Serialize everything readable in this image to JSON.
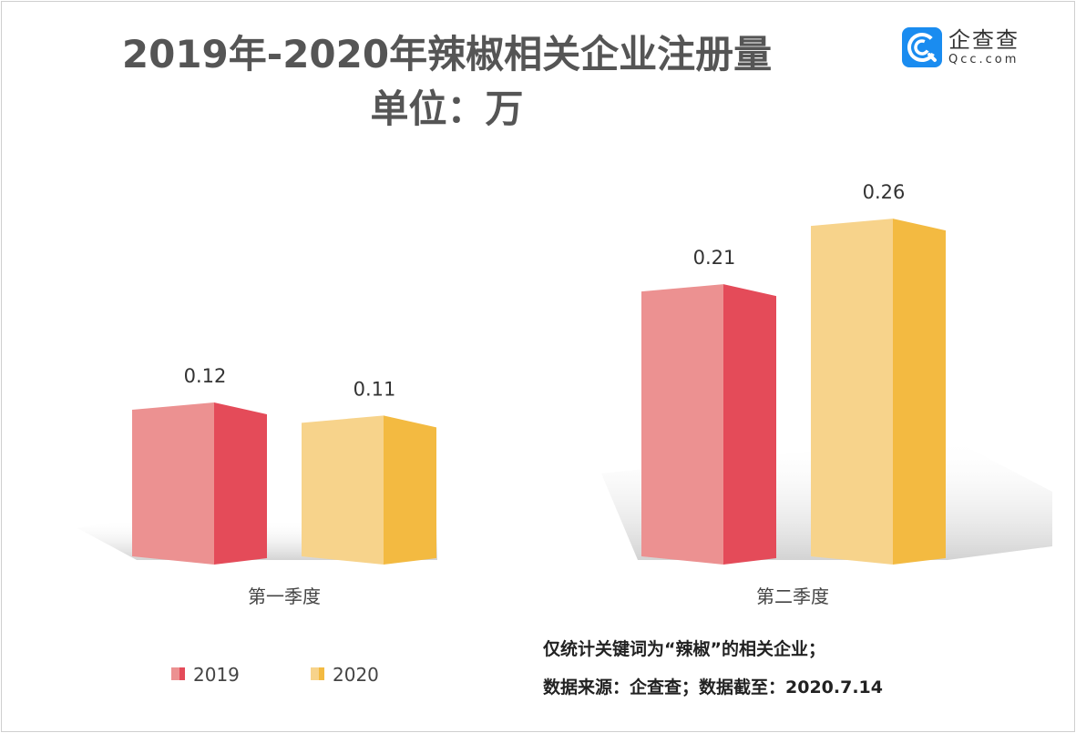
{
  "title": "2019年-2020年辣椒相关企业注册量",
  "subtitle": "单位：万",
  "logo": {
    "cn": "企查查",
    "en": "Qcc.com"
  },
  "colors": {
    "2019_front": "#ec9191",
    "2019_side": "#e44b59",
    "2020_front": "#f7d38b",
    "2020_side": "#f3ba41"
  },
  "chart_data": {
    "type": "bar",
    "style": "3d",
    "categories": [
      "第一季度",
      "第二季度"
    ],
    "series": [
      {
        "name": "2019",
        "values": [
          0.12,
          0.21
        ]
      },
      {
        "name": "2020",
        "values": [
          0.11,
          0.26
        ]
      }
    ],
    "ylim": [
      0,
      0.3
    ],
    "grid": false,
    "legend": "bottom-left",
    "data_labels": [
      "0.12",
      "0.21",
      "0.11",
      "0.26"
    ]
  },
  "notes": [
    "仅统计关键词为“辣椒”的相关企业；",
    "数据来源：企查查；数据截至：2020.7.14"
  ]
}
